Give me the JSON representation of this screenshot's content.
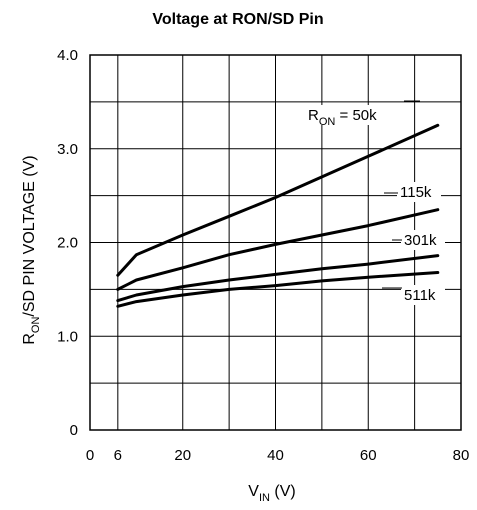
{
  "chart_data": {
    "type": "line",
    "title": "Voltage at RON/SD Pin",
    "xlabel": {
      "main": "V",
      "sub": "IN",
      "suffix": " (V)"
    },
    "ylabel": {
      "main": "R",
      "sub": "ON",
      "suffix": "/SD PIN VOLTAGE (V)"
    },
    "xlim": [
      0,
      80
    ],
    "ylim": [
      0,
      4.0
    ],
    "x_ticks": [
      {
        "value": 0,
        "label": "0"
      },
      {
        "value": 6,
        "label": "6"
      },
      {
        "value": 20,
        "label": "20"
      },
      {
        "value": 40,
        "label": "40"
      },
      {
        "value": 60,
        "label": "60"
      },
      {
        "value": 80,
        "label": "80"
      }
    ],
    "y_ticks": [
      {
        "value": 0,
        "label": "0"
      },
      {
        "value": 1.0,
        "label": "1.0"
      },
      {
        "value": 2.0,
        "label": "2.0"
      },
      {
        "value": 3.0,
        "label": "3.0"
      },
      {
        "value": 4.0,
        "label": "4.0"
      }
    ],
    "grid": true,
    "series": [
      {
        "name": "50k",
        "label_prefix": "R",
        "label_sub": "ON",
        "label_suffix": " = 50k",
        "x": [
          6,
          10,
          20,
          30,
          40,
          50,
          60,
          75
        ],
        "y": [
          1.65,
          1.87,
          2.08,
          2.28,
          2.48,
          2.7,
          2.92,
          3.25
        ]
      },
      {
        "name": "115k",
        "x": [
          6,
          10,
          20,
          30,
          40,
          50,
          60,
          75
        ],
        "y": [
          1.5,
          1.6,
          1.73,
          1.87,
          1.98,
          2.08,
          2.18,
          2.35
        ]
      },
      {
        "name": "301k",
        "x": [
          6,
          10,
          20,
          30,
          40,
          50,
          60,
          75
        ],
        "y": [
          1.38,
          1.44,
          1.53,
          1.6,
          1.66,
          1.72,
          1.77,
          1.86
        ]
      },
      {
        "name": "511k",
        "x": [
          6,
          10,
          20,
          30,
          40,
          50,
          60,
          75
        ],
        "y": [
          1.32,
          1.37,
          1.44,
          1.5,
          1.54,
          1.59,
          1.63,
          1.68
        ]
      }
    ]
  }
}
